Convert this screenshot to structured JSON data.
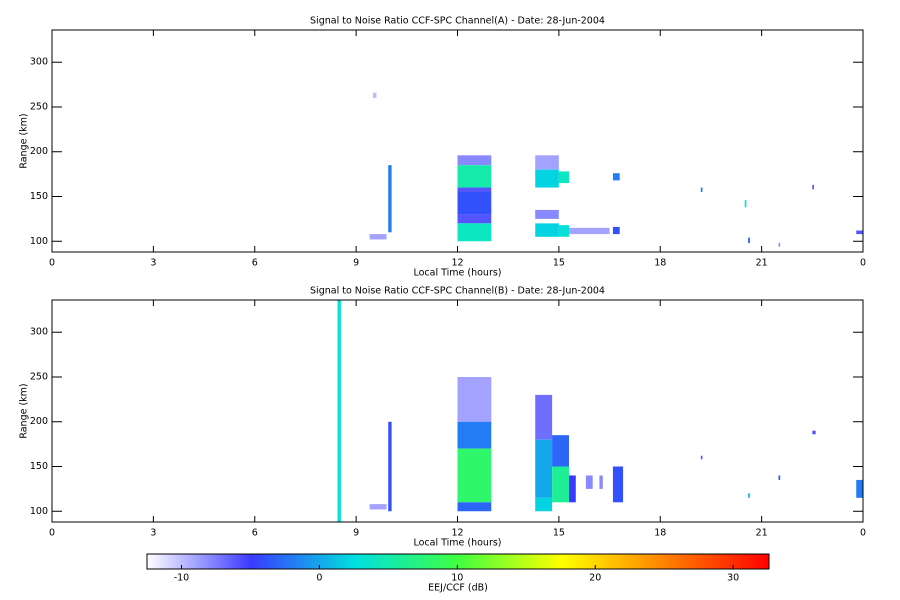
{
  "chart_data": [
    {
      "type": "heatmap",
      "title": "Signal to Noise Ratio CCF-SPC Channel(A) - Date: 28-Jun-2004",
      "x_label": "Local Time (hours)",
      "y_label": "Range (km)",
      "xlim": [
        0,
        24
      ],
      "xticks": [
        0,
        3,
        6,
        9,
        12,
        15,
        18,
        21,
        {
          "value": 24,
          "label": "0"
        }
      ],
      "ylim": [
        88,
        336
      ],
      "yticks": [
        100,
        150,
        200,
        250,
        300
      ],
      "cells": [
        [
          9.5,
          9.6,
          260,
          266,
          -10
        ],
        [
          9.4,
          9.9,
          102,
          108,
          -9
        ],
        [
          9.95,
          10.05,
          110,
          185,
          -2
        ],
        [
          12.0,
          13.0,
          185,
          196,
          -8
        ],
        [
          12.0,
          13.0,
          160,
          185,
          5
        ],
        [
          12.0,
          13.0,
          155,
          160,
          -6
        ],
        [
          12.0,
          13.0,
          130,
          155,
          -4
        ],
        [
          12.0,
          13.0,
          120,
          130,
          -6
        ],
        [
          12.0,
          13.0,
          100,
          120,
          4
        ],
        [
          14.3,
          15.0,
          180,
          196,
          -9
        ],
        [
          14.3,
          15.0,
          160,
          180,
          2
        ],
        [
          14.3,
          15.0,
          125,
          135,
          -8
        ],
        [
          14.3,
          15.0,
          105,
          120,
          2
        ],
        [
          15.0,
          15.3,
          165,
          178,
          4
        ],
        [
          15.0,
          15.3,
          105,
          118,
          3
        ],
        [
          15.3,
          16.5,
          108,
          115,
          -9
        ],
        [
          16.6,
          16.8,
          168,
          176,
          -2
        ],
        [
          16.6,
          16.8,
          108,
          116,
          -4
        ],
        [
          19.2,
          19.25,
          155,
          160,
          -2
        ],
        [
          20.5,
          20.55,
          138,
          146,
          3
        ],
        [
          20.6,
          20.65,
          98,
          104,
          -4
        ],
        [
          22.5,
          22.55,
          158,
          163,
          -6
        ],
        [
          23.8,
          24.0,
          108,
          112,
          -6
        ],
        [
          21.5,
          21.55,
          94,
          98,
          -8
        ]
      ]
    },
    {
      "type": "heatmap",
      "title": "Signal to Noise Ratio CCF-SPC Channel(B) - Date: 28-Jun-2004",
      "x_label": "Local Time (hours)",
      "y_label": "Range (km)",
      "xlim": [
        0,
        24
      ],
      "xticks": [
        0,
        3,
        6,
        9,
        12,
        15,
        18,
        21,
        {
          "value": 24,
          "label": "0"
        }
      ],
      "ylim": [
        88,
        336
      ],
      "yticks": [
        100,
        150,
        200,
        250,
        300
      ],
      "cells": [
        [
          8.45,
          8.55,
          88,
          336,
          3
        ],
        [
          9.4,
          9.9,
          102,
          108,
          -9
        ],
        [
          9.95,
          10.05,
          100,
          200,
          -4
        ],
        [
          12.0,
          13.0,
          200,
          250,
          -9
        ],
        [
          12.0,
          13.0,
          170,
          200,
          -2
        ],
        [
          12.0,
          13.0,
          110,
          170,
          8
        ],
        [
          12.0,
          13.0,
          100,
          110,
          -3
        ],
        [
          14.3,
          14.8,
          180,
          230,
          -7
        ],
        [
          14.3,
          14.8,
          115,
          180,
          0
        ],
        [
          14.3,
          14.8,
          100,
          115,
          2
        ],
        [
          14.8,
          15.3,
          150,
          185,
          -3
        ],
        [
          14.8,
          15.3,
          110,
          150,
          6
        ],
        [
          15.3,
          15.5,
          110,
          140,
          -5
        ],
        [
          15.8,
          16.0,
          125,
          140,
          -8
        ],
        [
          16.2,
          16.3,
          125,
          140,
          -8
        ],
        [
          16.6,
          16.9,
          110,
          150,
          -4
        ],
        [
          19.2,
          19.25,
          158,
          162,
          -6
        ],
        [
          20.6,
          20.65,
          115,
          120,
          0
        ],
        [
          21.5,
          21.55,
          135,
          140,
          -4
        ],
        [
          22.5,
          22.6,
          186,
          190,
          -6
        ],
        [
          23.8,
          24.0,
          115,
          135,
          -2
        ]
      ]
    },
    {
      "type": "colorbar",
      "x_label": "EEJ/CCF (dB)",
      "xlim": [
        -12.5,
        32.6
      ],
      "xticks": [
        -10,
        0,
        10,
        20,
        30
      ],
      "colormap": [
        "#ffffff",
        "#3a3aff",
        "#00e0e0",
        "#40ff40",
        "#ffff00",
        "#ff8000",
        "#ff0000"
      ]
    }
  ]
}
